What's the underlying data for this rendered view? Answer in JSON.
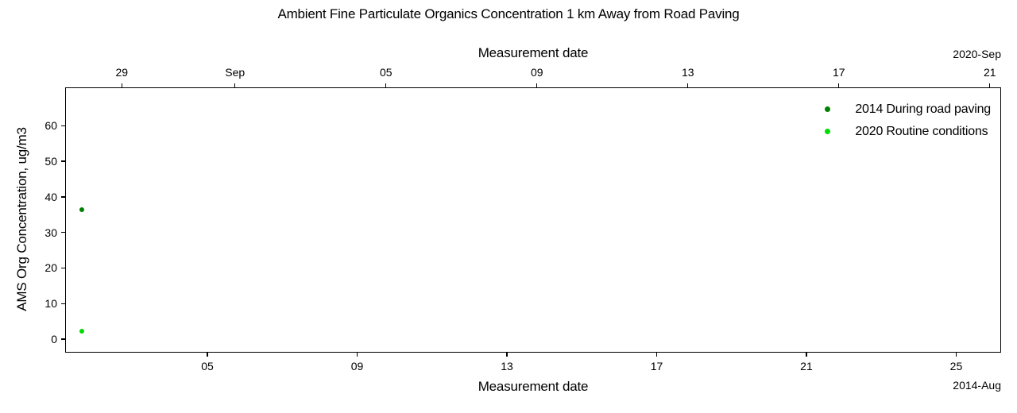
{
  "chart_data": {
    "type": "scatter",
    "title": "Ambient Fine Particulate Organics Concentration 1 km Away from Road Paving",
    "grid": false,
    "background_color": "#FFFFFF",
    "legend_position": "upper right",
    "legend_frame": false,
    "y_axis": {
      "label": "AMS Org Concentration, ug/m3",
      "range": [
        -3.8,
        70.8
      ],
      "ticks": [
        0,
        10,
        20,
        30,
        40,
        50,
        60
      ]
    },
    "day_unit_note": "day values are day-of-month offsets from Aug 0 of that year; September day N = 31 + N",
    "top_axis": {
      "label": "Measurement date",
      "corner_label": "2020-Sep",
      "year": "2020",
      "range_days": [
        27.5,
        52.3
      ],
      "ticks": [
        {
          "day": 29,
          "label": "29"
        },
        {
          "day": 32,
          "label": "Sep"
        },
        {
          "day": 36,
          "label": "05"
        },
        {
          "day": 40,
          "label": "09"
        },
        {
          "day": 44,
          "label": "13"
        },
        {
          "day": 48,
          "label": "17"
        },
        {
          "day": 52,
          "label": "21"
        }
      ]
    },
    "bottom_axis": {
      "label": "Measurement date",
      "corner_label": "2014-Aug",
      "year": "2014",
      "range_days": [
        1.2,
        26.2
      ],
      "ticks": [
        {
          "day": 5,
          "label": "05"
        },
        {
          "day": 9,
          "label": "09"
        },
        {
          "day": 13,
          "label": "13"
        },
        {
          "day": 17,
          "label": "17"
        },
        {
          "day": 21,
          "label": "21"
        },
        {
          "day": 25,
          "label": "25"
        }
      ]
    },
    "series": [
      {
        "name": "2014 During road paving",
        "color": "#008000",
        "x_axis": "bottom",
        "points": [
          {
            "date": "2014-08-02",
            "day": 1.65,
            "value": 36.5
          }
        ]
      },
      {
        "name": "2020 Routine conditions",
        "color": "#00DC00",
        "x_axis": "top",
        "points": [
          {
            "date": "2020-08-28",
            "day": 27.95,
            "value": 2.2
          }
        ]
      }
    ]
  }
}
